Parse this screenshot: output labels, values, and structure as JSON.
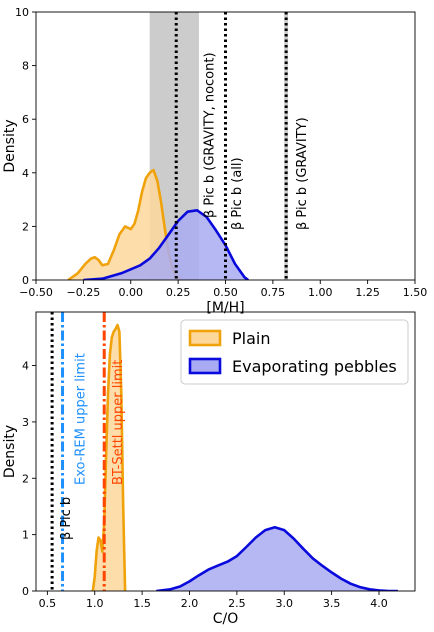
{
  "chart_data": [
    {
      "type": "area",
      "xlabel": "[M/H]",
      "ylabel": "Density",
      "xlim": [
        -0.5,
        1.5
      ],
      "ylim": [
        0,
        10
      ],
      "xticks": [
        -0.5,
        -0.25,
        0.0,
        0.25,
        0.5,
        0.75,
        1.0,
        1.25,
        1.5
      ],
      "xtick_labels": [
        "−0.50",
        "−0.25",
        "0.00",
        "0.25",
        "0.50",
        "0.75",
        "1.00",
        "1.25",
        "1.50"
      ],
      "yticks": [
        0,
        2,
        4,
        6,
        8,
        10
      ],
      "ytick_labels": [
        "0",
        "2",
        "4",
        "6",
        "8",
        "10"
      ],
      "shaded_bands": [
        {
          "from": 0.1,
          "to": 0.36,
          "color": "#aaaaaa"
        },
        {
          "from": 0.81,
          "to": 0.83,
          "color": "#aaaaaa"
        }
      ],
      "reference_lines": [
        {
          "x": 0.24,
          "style": "dotted",
          "color": "#000000",
          "label": ""
        },
        {
          "x": 0.5,
          "style": "dotted",
          "color": "#000000",
          "label": "β Pic b (GRAVITY, nocont)"
        },
        {
          "x": 0.82,
          "style": "dotted",
          "color": "#000000",
          "label": "β Pic b (GRAVITY)"
        }
      ],
      "annotations": [
        {
          "x": 0.54,
          "text": "β Pic b (all)"
        }
      ],
      "series": [
        {
          "fill": "#fdd79a",
          "line": "#f0a20b",
          "x": [
            -0.33,
            -0.28,
            -0.24,
            -0.21,
            -0.19,
            -0.17,
            -0.15,
            -0.12,
            -0.09,
            -0.06,
            -0.03,
            0.0,
            0.02,
            0.04,
            0.06,
            0.08,
            0.1,
            0.12,
            0.14,
            0.16,
            0.18,
            0.2,
            0.22,
            0.24,
            0.26
          ],
          "y": [
            0.0,
            0.25,
            0.6,
            0.8,
            0.85,
            0.75,
            0.55,
            0.6,
            1.1,
            1.7,
            2.0,
            1.9,
            2.1,
            2.6,
            3.3,
            3.8,
            4.0,
            4.1,
            3.7,
            2.9,
            1.9,
            1.0,
            0.45,
            0.15,
            0.0
          ]
        },
        {
          "fill": "#a9abf2",
          "line": "#0a0adc",
          "x": [
            -0.25,
            -0.15,
            -0.05,
            0.0,
            0.05,
            0.1,
            0.15,
            0.2,
            0.25,
            0.3,
            0.35,
            0.4,
            0.45,
            0.5,
            0.55,
            0.6,
            0.62
          ],
          "y": [
            0.0,
            0.05,
            0.25,
            0.4,
            0.55,
            0.8,
            1.2,
            1.7,
            2.2,
            2.55,
            2.6,
            2.35,
            1.85,
            1.3,
            0.6,
            0.1,
            0.0
          ]
        }
      ]
    },
    {
      "type": "area",
      "xlabel": "C/O",
      "ylabel": "Density",
      "xlim": [
        0.38,
        4.38
      ],
      "ylim": [
        0,
        4.95
      ],
      "xticks": [
        0.5,
        1.0,
        1.5,
        2.0,
        2.5,
        3.0,
        3.5,
        4.0
      ],
      "xtick_labels": [
        "0.5",
        "1.0",
        "1.5",
        "2.0",
        "2.5",
        "3.0",
        "3.5",
        "4.0"
      ],
      "yticks": [
        0,
        1,
        2,
        3,
        4
      ],
      "ytick_labels": [
        "0",
        "1",
        "2",
        "3",
        "4"
      ],
      "reference_lines": [
        {
          "x": 0.55,
          "style": "dotted",
          "color": "#000000",
          "label": "β Pic b"
        },
        {
          "x": 0.66,
          "style": "dashdot",
          "color": "#1e90ff",
          "label": "Exo-REM upper limit"
        },
        {
          "x": 1.1,
          "style": "dashdot",
          "color": "#ff4500",
          "label": "BT-Settl upper limit"
        }
      ],
      "legend": {
        "position": "top-right",
        "entries": [
          "Plain",
          "Evaporating pebbles"
        ]
      },
      "series": [
        {
          "name": "Plain",
          "fill": "#fdd79a",
          "line": "#f0a20b",
          "x": [
            0.98,
            1.0,
            1.02,
            1.04,
            1.06,
            1.08,
            1.1,
            1.12,
            1.14,
            1.16,
            1.18,
            1.2,
            1.22,
            1.24,
            1.26,
            1.28,
            1.3,
            1.32
          ],
          "y": [
            0.0,
            0.25,
            0.7,
            0.95,
            0.9,
            0.7,
            1.2,
            2.4,
            3.5,
            4.2,
            4.5,
            4.6,
            4.65,
            4.72,
            4.6,
            3.5,
            1.5,
            0.0
          ]
        },
        {
          "name": "Evaporating pebbles",
          "fill": "#a9abf2",
          "line": "#0a0adc",
          "x": [
            1.65,
            1.8,
            1.9,
            2.0,
            2.1,
            2.2,
            2.3,
            2.4,
            2.5,
            2.6,
            2.7,
            2.8,
            2.9,
            3.0,
            3.1,
            3.2,
            3.3,
            3.4,
            3.5,
            3.6,
            3.7,
            3.8,
            3.9,
            4.0,
            4.1,
            4.2
          ],
          "y": [
            0.0,
            0.03,
            0.08,
            0.17,
            0.28,
            0.38,
            0.45,
            0.52,
            0.62,
            0.78,
            0.95,
            1.08,
            1.13,
            1.08,
            0.93,
            0.75,
            0.58,
            0.45,
            0.33,
            0.22,
            0.13,
            0.07,
            0.03,
            0.01,
            0.0,
            0.0
          ]
        }
      ]
    }
  ]
}
